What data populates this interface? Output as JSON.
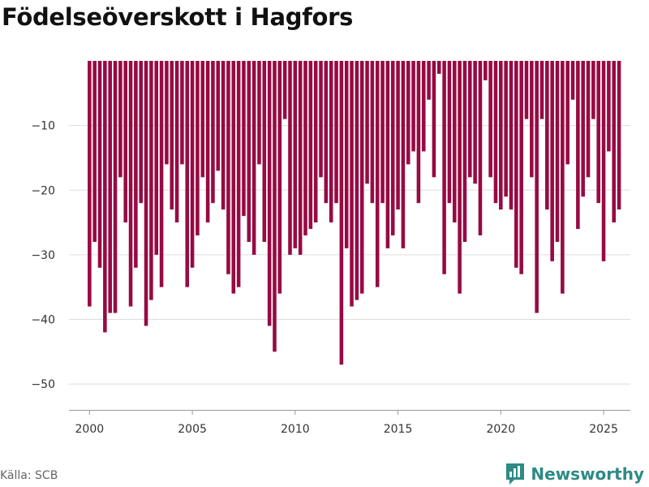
{
  "title": "Födelseöverskott i Hagfors",
  "source": "Källa: SCB",
  "brand": {
    "name": "Newsworthy",
    "icon": "newsworthy-logo-icon",
    "color": "#2d8a85"
  },
  "colors": {
    "bar": "#970a44",
    "grid": "#dddddd",
    "axis": "#999999"
  },
  "chart_data": {
    "type": "bar",
    "title": "Födelseöverskott i Hagfors",
    "xlabel": "",
    "ylabel": "",
    "ylim": [
      -54,
      0
    ],
    "xlim": [
      1999,
      2026.3
    ],
    "grid": true,
    "x_ticks": [
      2000,
      2005,
      2010,
      2015,
      2020,
      2025
    ],
    "y_ticks": [
      -10,
      -20,
      -30,
      -40,
      -50
    ],
    "x_tick_labels": [
      "2000",
      "2005",
      "2010",
      "2015",
      "2020",
      "2025"
    ],
    "y_tick_labels": [
      "−10",
      "−20",
      "−30",
      "−40",
      "−50"
    ],
    "series": [
      {
        "values": [
          -38,
          -28,
          -32,
          -42,
          -39,
          -39,
          -18,
          -25,
          -38,
          -32,
          -22,
          -41,
          -37,
          -30,
          -35,
          -16,
          -23,
          -25,
          -16,
          -35,
          -32,
          -27,
          -18,
          -25,
          -22,
          -17,
          -23,
          -33,
          -36,
          -35,
          -24,
          -28,
          -30,
          -16,
          -28,
          -41,
          -45,
          -36,
          -9,
          -30,
          -29,
          -30,
          -27,
          -26,
          -25,
          -18,
          -22,
          -25,
          -22,
          -47,
          -29,
          -38,
          -37,
          -36,
          -19,
          -22,
          -35,
          -22,
          -29,
          -27,
          -23,
          -29,
          -16,
          -14,
          -22,
          -14,
          -6,
          -18,
          -2,
          -33,
          -22,
          -25,
          -36,
          -28,
          -18,
          -19,
          -27,
          -3,
          -18,
          -22,
          -23,
          -21,
          -23,
          -32,
          -33,
          -9,
          -18,
          -39,
          -9,
          -23,
          -31,
          -28,
          -36,
          -16,
          -6,
          -26,
          -21,
          -18,
          -9,
          -22,
          -31,
          -14,
          -25,
          -23
        ]
      }
    ]
  }
}
